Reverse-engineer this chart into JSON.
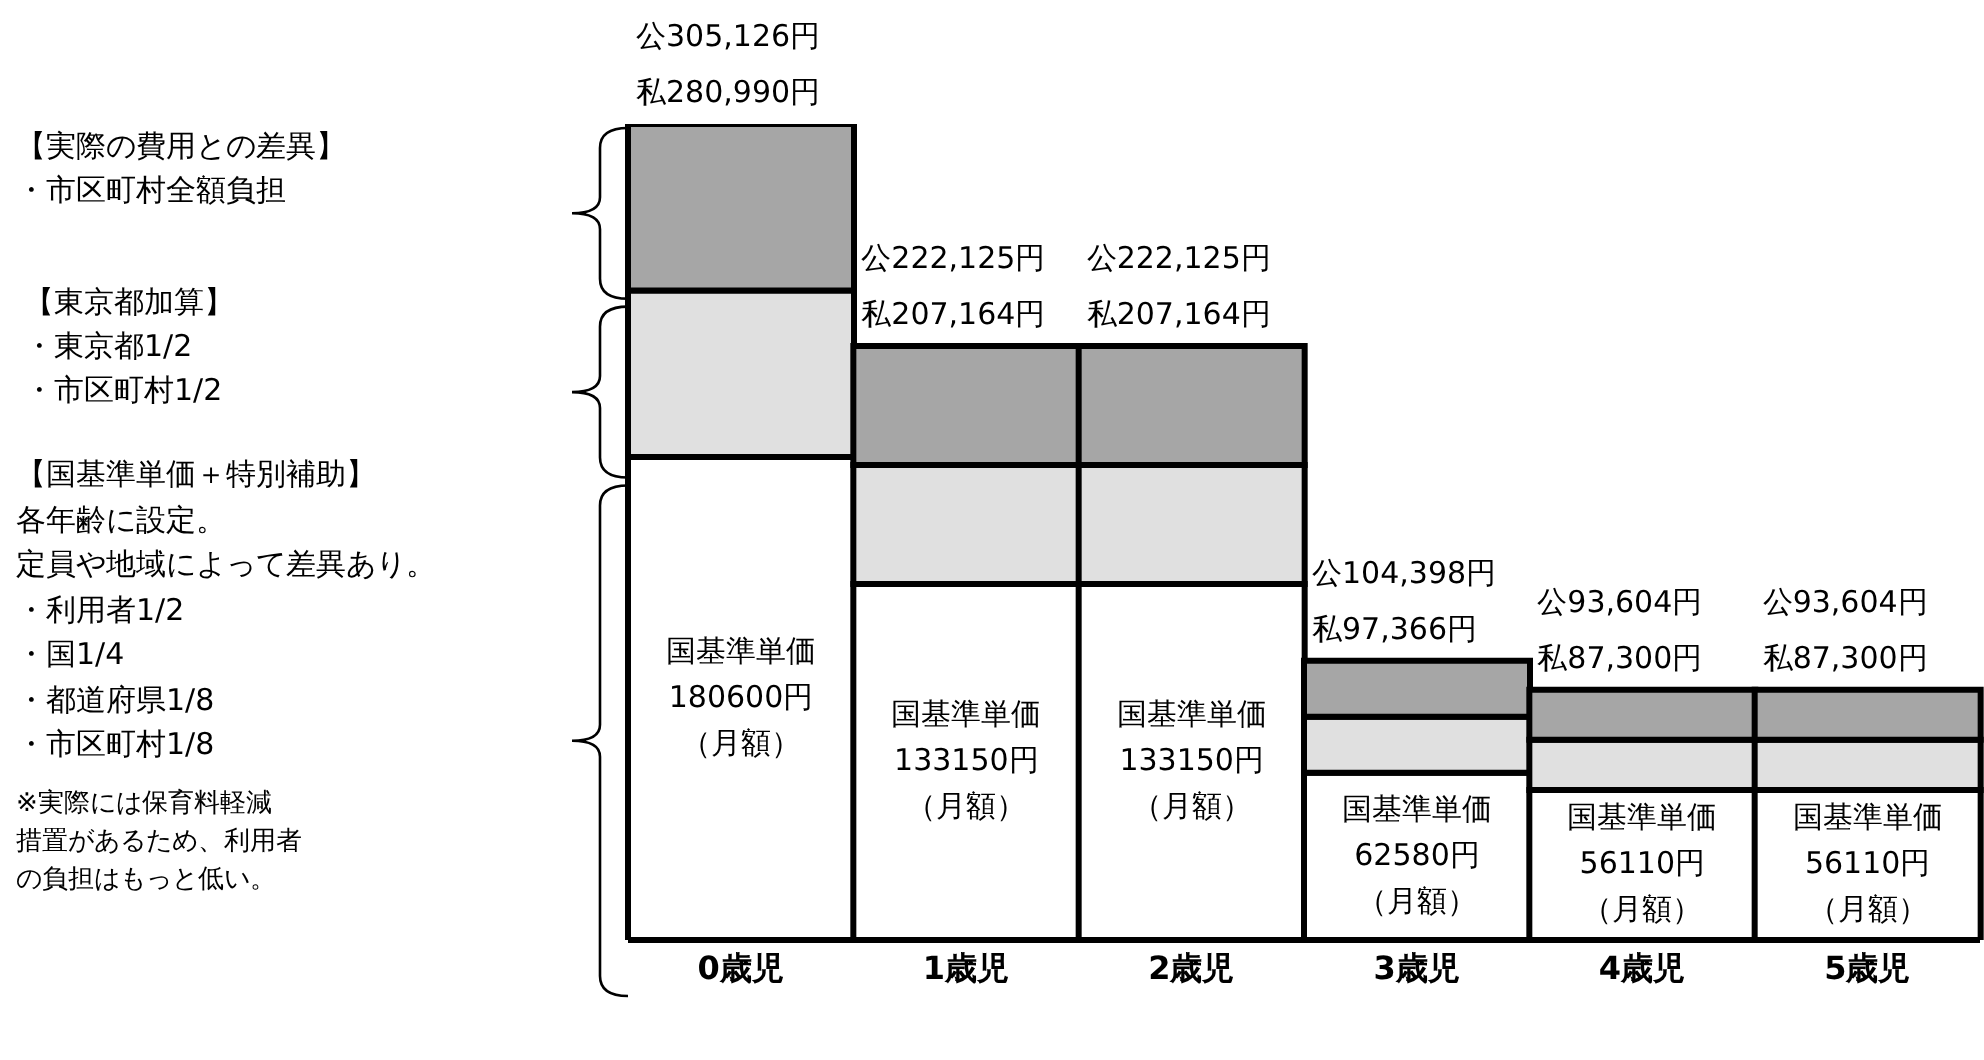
{
  "chart_data": {
    "type": "bar",
    "stacked": true,
    "categories": [
      "0歳児",
      "1歳児",
      "2歳児",
      "3歳児",
      "4歳児",
      "5歳児"
    ],
    "series": [
      {
        "color": "#ffffff",
        "values": [
          180600,
          133150,
          133150,
          62580,
          56110,
          56110
        ],
        "value_labels": [
          "国基準単価180600円（月額）",
          "国基準単価133150円（月額）",
          "国基準単価133150円（月額）",
          "国基準単価62580円（月額）",
          "国基準単価56110円（月額）",
          "国基準単価56110円（月額）"
        ]
      },
      {
        "color": "#e0e0e0",
        "values": [
          62300,
          44500,
          44500,
          20900,
          18750,
          18750
        ]
      },
      {
        "color": "#a6a6a6",
        "values": [
          62226,
          44475,
          44475,
          20918,
          18744,
          18744
        ]
      }
    ],
    "totals": [
      "公305,126円私280,990円",
      "公222,125円私207,164円",
      "公222,125円私207,164円",
      "公104,398円私97,366円",
      "公93,604円私87,300円",
      "公93,604円私87,300円"
    ],
    "annotations": [
      "【実際の費用との差異】",
      "・市区町村全額負担",
      "【東京都加算】",
      "・東京都1/2",
      "・市区町村1/2",
      "【国基準単価＋特別補助】",
      "各年齢に設定。",
      "定員や地域によって差異あり。",
      "・利用者1/2",
      "・国1/4",
      "・都道府県1/8",
      "・市区町村1/8",
      "※実際には保育料軽減",
      "措置があるため、利用者",
      "の負担はもっと低い。"
    ],
    "legend": false,
    "grid": false
  }
}
